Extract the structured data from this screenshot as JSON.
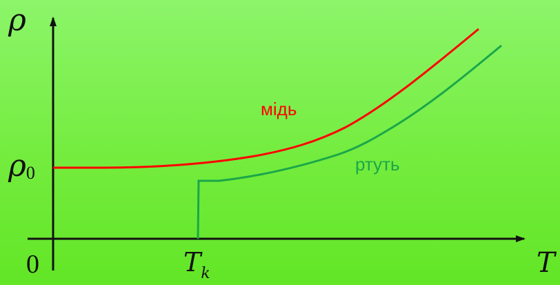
{
  "labels": {
    "y_axis_symbol": "ρ",
    "y_axis_value_symbol": "ρ",
    "y_axis_value_subscript": "0",
    "origin": "0",
    "x_axis_symbol": "T",
    "x_tick_symbol": "T",
    "x_tick_subscript": "k",
    "copper_label": "мідь",
    "mercury_label": "ртуть"
  },
  "colors": {
    "background_top": "#8cf56a",
    "background_bottom": "#62e626",
    "axis": "#111111",
    "copper_curve": "#ff0000",
    "mercury_curve": "#1aa64a",
    "copper_label": "#ff0000",
    "mercury_label": "#1aa64a"
  }
}
